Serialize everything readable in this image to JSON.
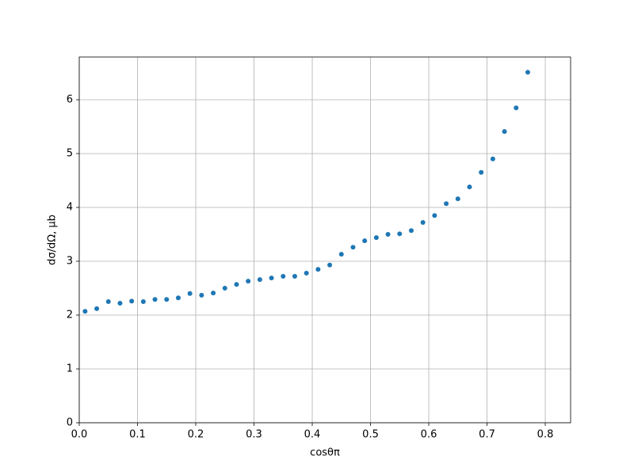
{
  "chart_data": {
    "type": "scatter",
    "x_label": "cosθπ",
    "y_label": "dσ/dΩ, μb",
    "color": "#1f77b4",
    "grid": true,
    "xlim": [
      0,
      0.8435
    ],
    "ylim": [
      0,
      6.794
    ],
    "xticks": [
      {
        "value": 0,
        "label": "0.0"
      },
      0.1,
      0.2,
      0.3,
      0.4,
      0.5,
      0.6,
      0.7,
      0.8
    ],
    "yticks": [
      0,
      1,
      2,
      3,
      4,
      5,
      6
    ],
    "x": [
      0.01,
      0.03,
      0.05,
      0.07,
      0.09,
      0.11,
      0.13,
      0.15,
      0.17,
      0.19,
      0.21,
      0.23,
      0.25,
      0.27,
      0.29,
      0.31,
      0.33,
      0.35,
      0.37,
      0.39,
      0.41,
      0.43,
      0.45,
      0.47,
      0.49,
      0.51,
      0.53,
      0.55,
      0.57,
      0.59,
      0.61,
      0.63,
      0.65,
      0.67,
      0.69,
      0.71,
      0.73,
      0.75,
      0.77
    ],
    "values": [
      2.07,
      2.12,
      2.25,
      2.22,
      2.26,
      2.25,
      2.29,
      2.29,
      2.32,
      2.4,
      2.37,
      2.41,
      2.5,
      2.57,
      2.63,
      2.66,
      2.69,
      2.72,
      2.72,
      2.78,
      2.85,
      2.93,
      3.13,
      3.26,
      3.38,
      3.44,
      3.5,
      3.51,
      3.57,
      3.72,
      3.85,
      4.07,
      4.16,
      4.38,
      4.65,
      4.9,
      5.41,
      5.85,
      6.51
    ]
  }
}
